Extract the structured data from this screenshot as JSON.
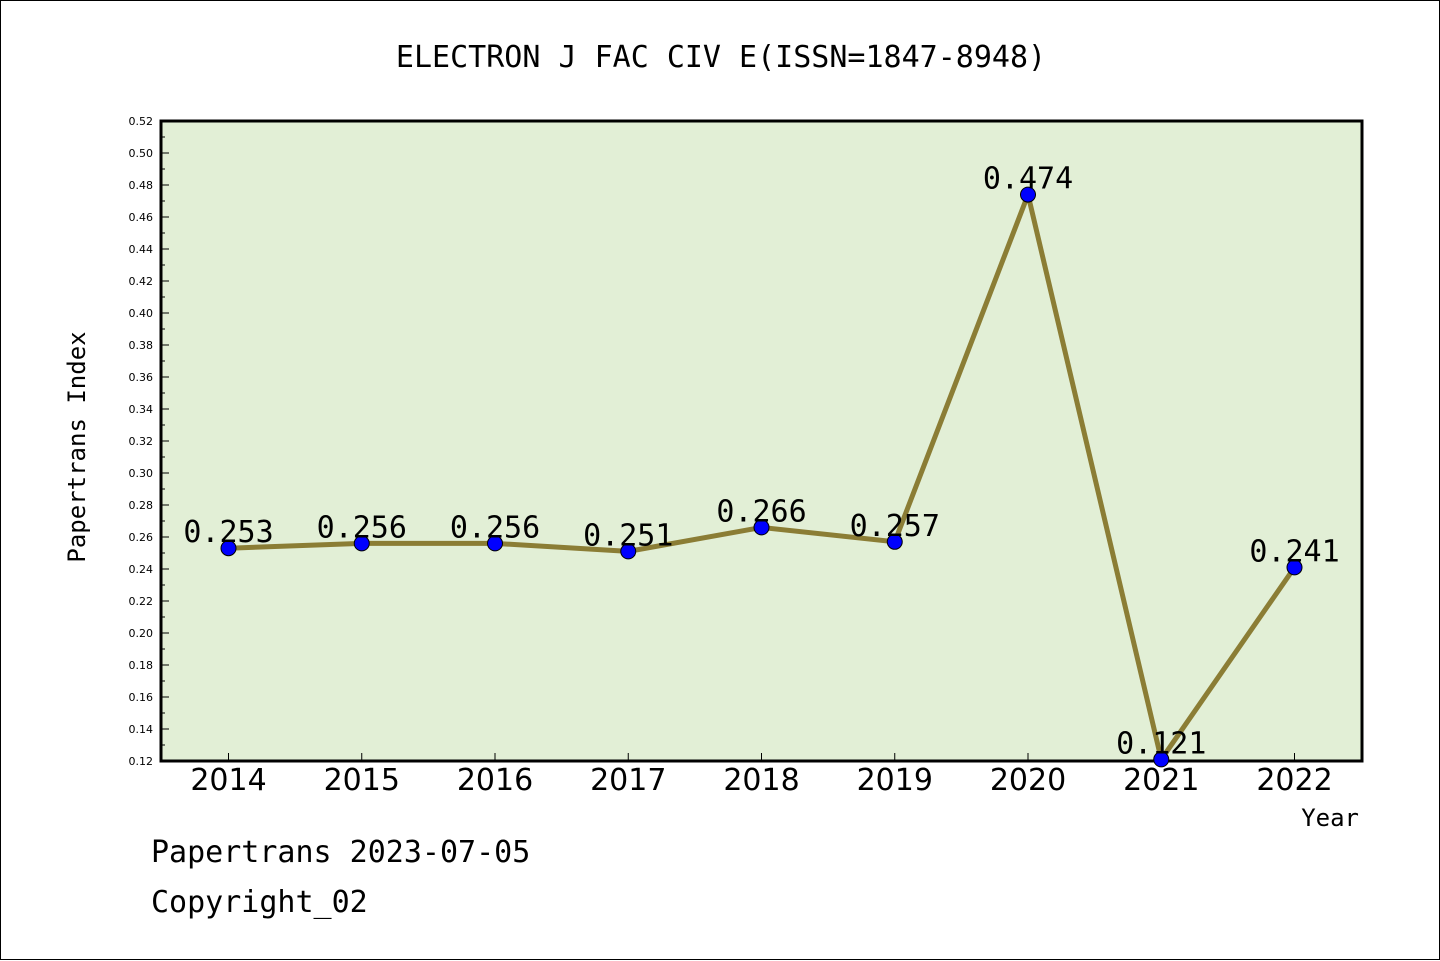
{
  "chart_data": {
    "type": "line",
    "title": "ELECTRON J FAC CIV E(ISSN=1847-8948)",
    "xlabel": "Year",
    "ylabel": "Papertrans Index",
    "categories": [
      "2014",
      "2015",
      "2016",
      "2017",
      "2018",
      "2019",
      "2020",
      "2021",
      "2022"
    ],
    "series": [
      {
        "values": [
          0.253,
          0.256,
          0.256,
          0.251,
          0.266,
          0.257,
          0.474,
          0.121,
          0.241
        ]
      }
    ],
    "data_labels": [
      "0.253",
      "0.256",
      "0.256",
      "0.251",
      "0.266",
      "0.257",
      "0.474",
      "0.121",
      "0.241"
    ],
    "ylim": [
      0.12,
      0.52
    ],
    "yticks": [
      "0.12",
      "0.14",
      "0.16",
      "0.18",
      "0.20",
      "0.22",
      "0.24",
      "0.26",
      "0.28",
      "0.30",
      "0.32",
      "0.34",
      "0.36",
      "0.38",
      "0.40",
      "0.42",
      "0.44",
      "0.46",
      "0.48",
      "0.50",
      "0.52"
    ],
    "grid": false,
    "colors": {
      "plot_background": "#e2efd6",
      "line": "#8b7d35",
      "marker": "#0000ff"
    }
  },
  "footer": {
    "line1": "Papertrans 2023-07-05",
    "line2": "Copyright_02"
  }
}
